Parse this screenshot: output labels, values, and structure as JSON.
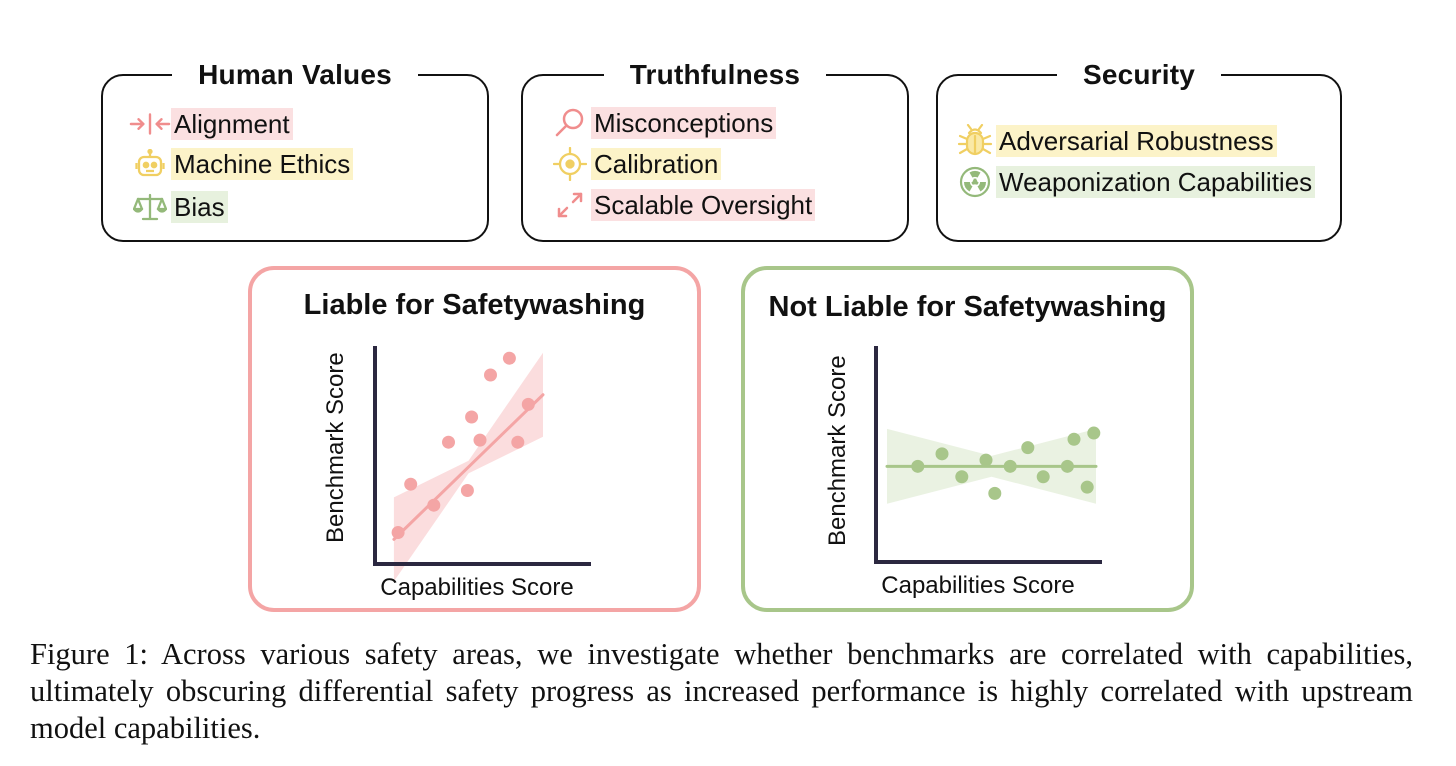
{
  "categories": [
    {
      "title": "Human Values",
      "items": [
        {
          "label": "Alignment",
          "icon": "alignment-arrows-icon",
          "highlight": "#fbe0e1"
        },
        {
          "label": "Machine Ethics",
          "icon": "robot-icon",
          "highlight": "#fcf3c8"
        },
        {
          "label": "Bias",
          "icon": "balance-scale-icon",
          "highlight": "#e7f1de"
        }
      ]
    },
    {
      "title": "Truthfulness",
      "items": [
        {
          "label": "Misconceptions",
          "icon": "magnifier-icon",
          "highlight": "#fbe0e1"
        },
        {
          "label": "Calibration",
          "icon": "crosshair-icon",
          "highlight": "#fcf3c8"
        },
        {
          "label": "Scalable Oversight",
          "icon": "expand-arrows-icon",
          "highlight": "#fbe0e1"
        }
      ]
    },
    {
      "title": "Security",
      "items": [
        {
          "label": "Adversarial Robustness",
          "icon": "bug-icon",
          "highlight": "#fcf3c8"
        },
        {
          "label": "Weaponization Capabilities",
          "icon": "radiation-icon",
          "highlight": "#e7f1de"
        }
      ]
    }
  ],
  "colors": {
    "pink": "#f4a5a5",
    "pink_light": "#fbd9da",
    "green": "#a8c68a",
    "green_light": "#e8f1df",
    "axis": "#2b2840",
    "yellow_icon": "#f3d36b"
  },
  "chart_data": [
    {
      "type": "scatter",
      "title": "Liable for Safetywashing",
      "xlabel": "Capabilities Score",
      "ylabel": "Benchmark Score",
      "xlim": [
        0,
        10
      ],
      "ylim": [
        0,
        10
      ],
      "points": [
        [
          1.1,
          1.5
        ],
        [
          1.7,
          3.8
        ],
        [
          2.8,
          2.8
        ],
        [
          3.5,
          5.8
        ],
        [
          4.4,
          3.5
        ],
        [
          4.6,
          7.0
        ],
        [
          5.0,
          5.9
        ],
        [
          5.5,
          9.0
        ],
        [
          6.4,
          9.8
        ],
        [
          6.8,
          5.8
        ],
        [
          7.3,
          7.6
        ]
      ],
      "trend": {
        "slope": 0.97,
        "intercept": 0.3,
        "x_range": [
          0.9,
          8.0
        ]
      },
      "band_width_at_ends": 2.0,
      "band_width_at_center": 0.3
    },
    {
      "type": "scatter",
      "title": "Not Liable for Safetywashing",
      "xlabel": "Capabilities Score",
      "ylabel": "Benchmark Score",
      "xlim": [
        0,
        10
      ],
      "ylim": [
        0,
        10
      ],
      "points": [
        [
          1.9,
          4.6
        ],
        [
          3.0,
          5.2
        ],
        [
          3.9,
          4.1
        ],
        [
          5.0,
          4.9
        ],
        [
          5.4,
          3.3
        ],
        [
          6.1,
          4.6
        ],
        [
          6.9,
          5.5
        ],
        [
          7.6,
          4.1
        ],
        [
          8.7,
          4.6
        ],
        [
          9.0,
          5.9
        ],
        [
          9.6,
          3.6
        ],
        [
          9.9,
          6.2
        ]
      ],
      "trend": {
        "slope": 0.0,
        "intercept": 4.6,
        "x_range": [
          0.5,
          10.0
        ]
      },
      "band_width_at_ends": 1.8,
      "band_width_at_center": 0.5
    }
  ],
  "caption": "Figure 1:  Across various safety areas, we investigate whether benchmarks are correlated with capabilities, ultimately obscuring differential safety progress as increased performance is highly correlated with upstream model capabilities."
}
